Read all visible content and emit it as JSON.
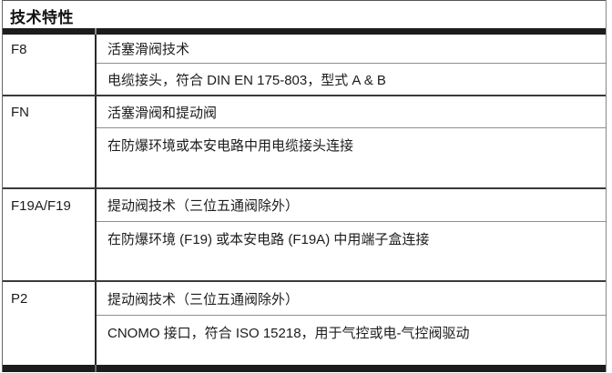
{
  "document": {
    "title": "技术特性",
    "colors": {
      "heavy_rule": "#1c1c1c",
      "group_rule": "#3a3a3a",
      "sub_rule": "#8f8f8f",
      "column_rule": "#2a2a2a",
      "text": "#1c1c1c",
      "background": "#ffffff"
    },
    "table": {
      "groups": [
        {
          "label": "F8",
          "rows": [
            "活塞滑阀技术",
            "电缆接头，符合 DIN EN 175-803，型式 A & B"
          ]
        },
        {
          "label": "FN",
          "rows": [
            "活塞滑阀和提动阀",
            "在防爆环境或本安电路中用电缆接头连接"
          ]
        },
        {
          "label": "F19A/F19",
          "rows": [
            "提动阀技术（三位五通阀除外）",
            "在防爆环境 (F19) 或本安电路 (F19A) 中用端子盒连接"
          ]
        },
        {
          "label": "P2",
          "rows": [
            "提动阀技术（三位五通阀除外）",
            "CNOMO 接口，符合 ISO 15218，用于气控或电-气控阀驱动"
          ]
        }
      ]
    }
  }
}
